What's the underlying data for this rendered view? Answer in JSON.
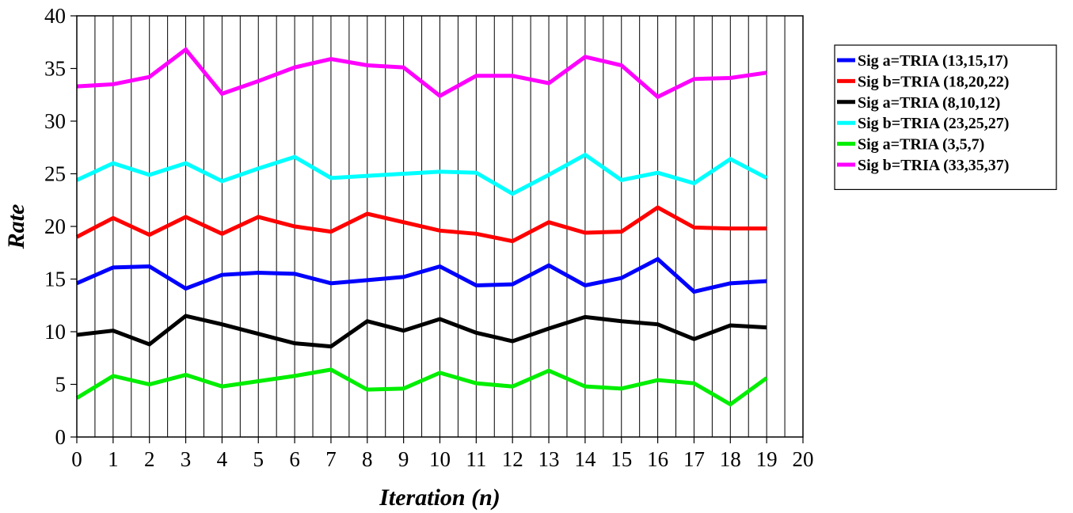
{
  "chart_data": {
    "type": "line",
    "xlabel": "Iteration (n)",
    "ylabel": "Rate",
    "xlim": [
      0,
      20
    ],
    "ylim": [
      0,
      40
    ],
    "x_ticks": [
      "0",
      "1",
      "2",
      "3",
      "4",
      "5",
      "6",
      "7",
      "8",
      "9",
      "10",
      "11",
      "12",
      "13",
      "14",
      "15",
      "16",
      "17",
      "18",
      "19",
      "20"
    ],
    "y_ticks": [
      "0",
      "5",
      "10",
      "15",
      "20",
      "25",
      "30",
      "35",
      "40"
    ],
    "grid": "vertical lines at every half iteration",
    "legend_position": "right",
    "x": [
      0,
      1,
      2,
      3,
      4,
      5,
      6,
      7,
      8,
      9,
      10,
      11,
      12,
      13,
      14,
      15,
      16,
      17,
      18,
      19
    ],
    "series": [
      {
        "name": "Sig a=TRIA (13,15,17)",
        "color": "#0000ff",
        "values": [
          14.6,
          16.1,
          16.2,
          14.1,
          15.4,
          15.6,
          15.5,
          14.6,
          14.9,
          15.2,
          16.2,
          14.4,
          14.5,
          16.3,
          14.4,
          15.1,
          16.9,
          13.8,
          14.6,
          14.8
        ]
      },
      {
        "name": "Sig b=TRIA (18,20,22)",
        "color": "#ff0000",
        "values": [
          19.0,
          20.8,
          19.2,
          20.9,
          19.3,
          20.9,
          20.0,
          19.5,
          21.2,
          20.4,
          19.6,
          19.3,
          18.6,
          20.4,
          19.4,
          19.5,
          21.8,
          19.9,
          19.8,
          19.8
        ]
      },
      {
        "name": "Sig a=TRIA (8,10,12)",
        "color": "#000000",
        "values": [
          9.7,
          10.1,
          8.8,
          11.5,
          10.7,
          9.8,
          8.9,
          8.6,
          11.0,
          10.1,
          11.2,
          9.9,
          9.1,
          10.3,
          11.4,
          11.0,
          10.7,
          9.3,
          10.6,
          10.4
        ]
      },
      {
        "name": "Sig b=TRIA (23,25,27)",
        "color": "#00ffff",
        "values": [
          24.4,
          26.0,
          24.9,
          26.0,
          24.3,
          25.5,
          26.6,
          24.6,
          24.8,
          25.0,
          25.2,
          25.1,
          23.1,
          24.9,
          26.8,
          24.4,
          25.1,
          24.1,
          26.4,
          24.6
        ]
      },
      {
        "name": "Sig a=TRIA (3,5,7)",
        "color": "#00ee00",
        "values": [
          3.7,
          5.8,
          5.0,
          5.9,
          4.8,
          5.3,
          5.8,
          6.4,
          4.5,
          4.6,
          6.1,
          5.1,
          4.8,
          6.3,
          4.8,
          4.6,
          5.4,
          5.1,
          3.1,
          5.6
        ]
      },
      {
        "name": "Sig b=TRIA (33,35,37)",
        "color": "#ff00ff",
        "values": [
          33.3,
          33.5,
          34.2,
          36.8,
          32.6,
          33.8,
          35.1,
          35.9,
          35.3,
          35.1,
          32.4,
          34.3,
          34.3,
          33.6,
          36.1,
          35.3,
          32.3,
          34.0,
          34.1,
          34.6
        ]
      }
    ]
  }
}
